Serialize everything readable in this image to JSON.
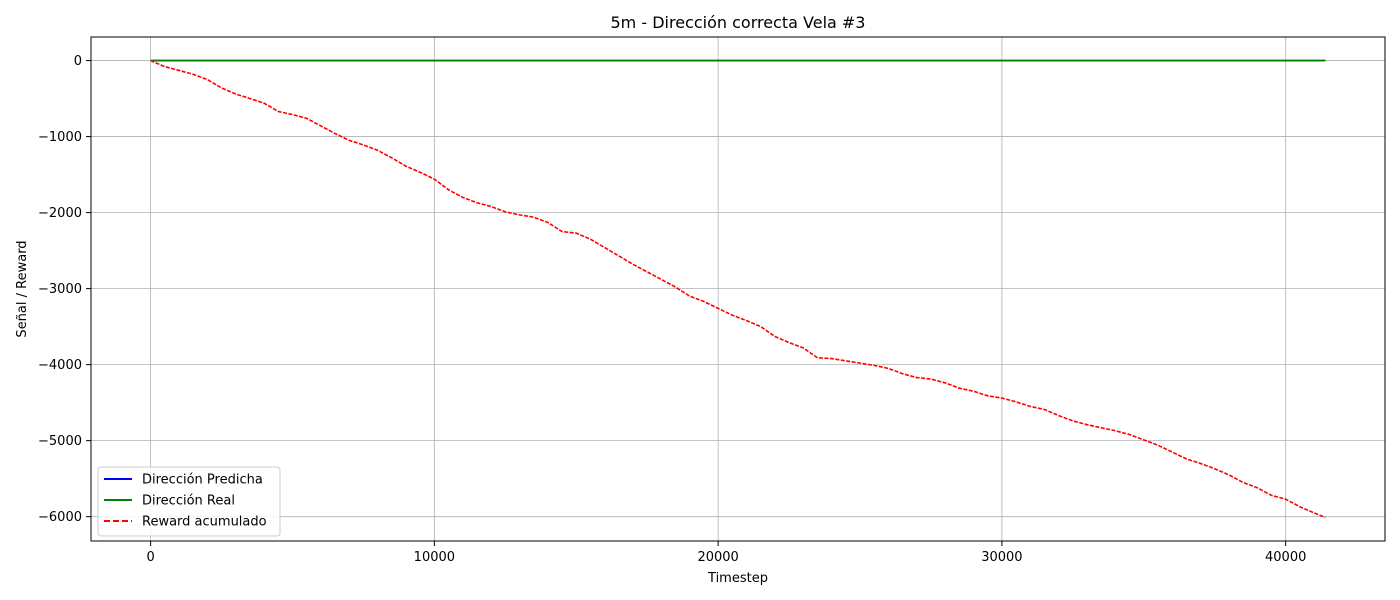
{
  "chart_data": {
    "type": "line",
    "title": "5m - Dirección correcta Vela #3",
    "xlabel": "Timestep",
    "ylabel": "Señal / Reward",
    "xlim": [
      -2100,
      43500
    ],
    "ylim": [
      -6320,
      310
    ],
    "xticks": [
      0,
      10000,
      20000,
      30000,
      40000
    ],
    "yticks": [
      0,
      -1000,
      -2000,
      -3000,
      -4000,
      -5000,
      -6000
    ],
    "xtick_labels": [
      "0",
      "10000",
      "20000",
      "30000",
      "40000"
    ],
    "ytick_labels": [
      "0",
      "−1000",
      "−2000",
      "−3000",
      "−4000",
      "−5000",
      "−6000"
    ],
    "grid": true,
    "legend_position": "lower-left",
    "series": [
      {
        "name": "Dirección Predicha",
        "color": "#0000ff",
        "style": "solid",
        "x": [
          0,
          41400
        ],
        "y": [
          0,
          0
        ]
      },
      {
        "name": "Dirección Real",
        "color": "#008000",
        "style": "solid",
        "x": [
          0,
          41400
        ],
        "y": [
          0,
          0
        ]
      },
      {
        "name": "Reward acumulado",
        "color": "#ff0000",
        "style": "dashed",
        "x": [
          0,
          500,
          1000,
          1500,
          2000,
          2500,
          3000,
          3500,
          4000,
          4500,
          5000,
          5500,
          6000,
          6500,
          7000,
          7500,
          8000,
          8500,
          9000,
          9500,
          10000,
          10500,
          11000,
          11500,
          12000,
          12500,
          13000,
          13500,
          14000,
          14500,
          15000,
          15500,
          16000,
          16500,
          17000,
          17500,
          18000,
          18500,
          19000,
          19500,
          20000,
          20500,
          21000,
          21500,
          22000,
          22500,
          23000,
          23500,
          24000,
          24500,
          25000,
          25500,
          26000,
          26500,
          27000,
          27500,
          28000,
          28500,
          29000,
          29500,
          30000,
          30500,
          31000,
          31500,
          32000,
          32500,
          33000,
          33500,
          34000,
          34500,
          35000,
          35500,
          36000,
          36500,
          37000,
          37500,
          38000,
          38500,
          39000,
          39500,
          40000,
          40500,
          41000,
          41400
        ],
        "y": [
          0,
          -80,
          -130,
          -180,
          -250,
          -360,
          -440,
          -500,
          -560,
          -670,
          -710,
          -760,
          -860,
          -960,
          -1050,
          -1110,
          -1180,
          -1280,
          -1390,
          -1470,
          -1560,
          -1700,
          -1800,
          -1870,
          -1920,
          -1990,
          -2030,
          -2060,
          -2130,
          -2250,
          -2270,
          -2350,
          -2460,
          -2570,
          -2680,
          -2780,
          -2880,
          -2980,
          -3100,
          -3170,
          -3260,
          -3350,
          -3420,
          -3500,
          -3630,
          -3710,
          -3780,
          -3910,
          -3920,
          -3950,
          -3980,
          -4010,
          -4050,
          -4120,
          -4170,
          -4190,
          -4240,
          -4310,
          -4350,
          -4410,
          -4440,
          -4490,
          -4550,
          -4590,
          -4670,
          -4740,
          -4790,
          -4830,
          -4870,
          -4920,
          -4990,
          -5060,
          -5150,
          -5240,
          -5300,
          -5370,
          -5450,
          -5550,
          -5620,
          -5720,
          -5770,
          -5870,
          -5950,
          -6010
        ]
      }
    ]
  }
}
